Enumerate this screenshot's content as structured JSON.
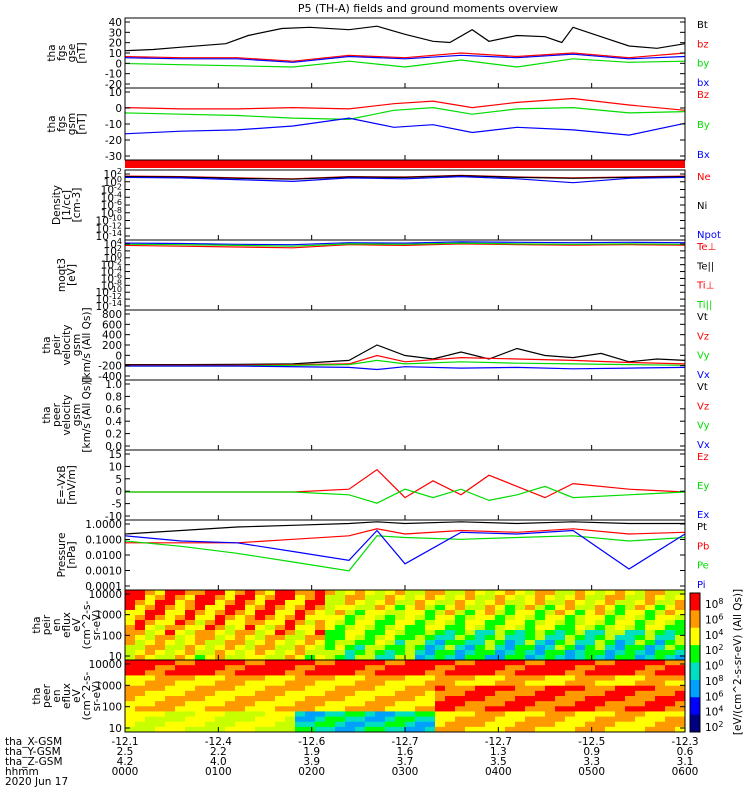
{
  "title": "P5 (TH-A) fields and ground moments overview",
  "colors": {
    "black": "#000000",
    "red": "#ff0000",
    "green": "#00dd00",
    "blue": "#0000ff"
  },
  "chart_data": [
    {
      "type": "line",
      "ylabel": [
        "tha",
        "fgs",
        "gse",
        "[nT]"
      ],
      "ylim": [
        -20,
        40
      ],
      "scale": "linear",
      "yticks": [
        "40",
        "30",
        "20",
        "10",
        "0",
        "-10",
        "-20"
      ],
      "legend": [
        {
          "label": "Bt",
          "color": "black"
        },
        {
          "label": "bz",
          "color": "red"
        },
        {
          "label": "by",
          "color": "green"
        },
        {
          "label": "bx",
          "color": "blue"
        }
      ],
      "series": [
        {
          "name": "Bt",
          "color": "black",
          "x": [
            0,
            5,
            10,
            18,
            22,
            28,
            33,
            40,
            45,
            50,
            55,
            58,
            62,
            65,
            70,
            75,
            78,
            80,
            85,
            90,
            95,
            100
          ],
          "y": [
            12,
            13,
            15,
            18,
            25,
            31,
            32,
            30,
            33,
            26,
            20,
            19,
            30,
            20,
            25,
            24,
            19,
            32,
            24,
            16,
            14,
            18
          ]
        },
        {
          "name": "bz",
          "color": "red",
          "x": [
            0,
            10,
            20,
            30,
            40,
            50,
            60,
            70,
            80,
            90,
            100
          ],
          "y": [
            7,
            6,
            6,
            3,
            8,
            6,
            10,
            7,
            10,
            6,
            10
          ]
        },
        {
          "name": "by",
          "color": "green",
          "x": [
            0,
            10,
            20,
            30,
            40,
            50,
            60,
            70,
            80,
            90,
            100
          ],
          "y": [
            1,
            0,
            -1,
            -2,
            3,
            -2,
            4,
            -2,
            5,
            2,
            3
          ]
        },
        {
          "name": "bx",
          "color": "blue",
          "x": [
            0,
            10,
            20,
            30,
            40,
            50,
            60,
            70,
            80,
            90,
            100
          ],
          "y": [
            6,
            5,
            5,
            2,
            7,
            5,
            8,
            6,
            9,
            5,
            7
          ]
        }
      ]
    },
    {
      "type": "line",
      "ylabel": [
        "tha",
        "fgs",
        "gsm",
        "[nT]"
      ],
      "ylim": [
        -35,
        20
      ],
      "scale": "linear",
      "yticks": [
        "10",
        "0",
        "-10",
        "-20",
        "-30"
      ],
      "legend": [
        {
          "label": "Bz",
          "color": "red"
        },
        {
          "label": "By",
          "color": "green"
        },
        {
          "label": "Bx",
          "color": "blue"
        }
      ],
      "series": [
        {
          "name": "Bz",
          "color": "red",
          "x": [
            0,
            10,
            20,
            30,
            40,
            48,
            55,
            62,
            70,
            80,
            90,
            100
          ],
          "y": [
            5,
            4,
            4,
            5,
            4,
            8,
            10,
            5,
            9,
            12,
            7,
            3
          ]
        },
        {
          "name": "By",
          "color": "green",
          "x": [
            0,
            10,
            20,
            30,
            40,
            48,
            55,
            62,
            70,
            80,
            90,
            100
          ],
          "y": [
            1,
            0,
            -1,
            -3,
            -4,
            3,
            5,
            0,
            4,
            5,
            1,
            2
          ]
        },
        {
          "name": "Bx",
          "color": "blue",
          "x": [
            0,
            10,
            20,
            30,
            40,
            48,
            55,
            62,
            70,
            80,
            90,
            100
          ],
          "y": [
            -15,
            -13,
            -12,
            -9,
            -3,
            -10,
            -8,
            -14,
            -10,
            -12,
            -16,
            -7
          ]
        }
      ]
    },
    {
      "type": "line",
      "ylabel": [
        "Density",
        "[1/cc]",
        "[cm-3]"
      ],
      "ylim": [
        -14,
        2
      ],
      "scale": "log",
      "yticks": [
        "10^2",
        "10^0",
        "10^-2",
        "10^-4",
        "10^-6",
        "10^-8",
        "10^-10",
        "10^-12",
        "10^-14"
      ],
      "legend": [
        {
          "label": "Ne",
          "color": "red"
        },
        {
          "label": "Ni",
          "color": "black"
        },
        {
          "label": "Npot",
          "color": "blue"
        }
      ],
      "series": [
        {
          "name": "Ne",
          "color": "red",
          "x": [
            0,
            10,
            20,
            30,
            40,
            50,
            60,
            70,
            80,
            90,
            100
          ],
          "y": [
            0.6,
            0.5,
            0.2,
            0,
            0.5,
            0.4,
            0.8,
            0.4,
            0.2,
            0.4,
            0.6
          ]
        },
        {
          "name": "Ni",
          "color": "black",
          "x": [
            0,
            10,
            20,
            30,
            40,
            50,
            60,
            70,
            80,
            90,
            100
          ],
          "y": [
            0.5,
            0.4,
            0.1,
            -0.1,
            0.4,
            0.3,
            0.7,
            0.3,
            0.1,
            0.3,
            0.5
          ]
        },
        {
          "name": "Npot",
          "color": "blue",
          "x": [
            0,
            10,
            20,
            30,
            40,
            50,
            60,
            70,
            80,
            90,
            100
          ],
          "y": [
            0.3,
            0.2,
            -0.2,
            -0.6,
            0.2,
            0,
            0.5,
            0,
            -0.9,
            0.1,
            0.3
          ]
        }
      ]
    },
    {
      "type": "line",
      "ylabel": [
        "moqt3",
        "[eV]"
      ],
      "ylim": [
        -14,
        4
      ],
      "scale": "log",
      "yticks": [
        "10^4",
        "10^2",
        "10^0",
        "10^-2",
        "10^-4",
        "10^-6",
        "10^-8",
        "10^-10",
        "10^-12",
        "10^-14"
      ],
      "legend": [
        {
          "label": "Te⊥",
          "color": "red"
        },
        {
          "label": "Te||",
          "color": "black"
        },
        {
          "label": "Ti⊥",
          "color": "red"
        },
        {
          "label": "Ti||",
          "color": "green"
        }
      ],
      "series": [
        {
          "name": "Ti",
          "color": "blue",
          "x": [
            0,
            10,
            20,
            30,
            40,
            50,
            60,
            70,
            80,
            90,
            100
          ],
          "y": [
            3.2,
            3.1,
            2.9,
            2.8,
            3.3,
            3.2,
            3.5,
            3.4,
            3.3,
            3.4,
            3.3
          ]
        },
        {
          "name": "Te",
          "color": "red",
          "x": [
            0,
            10,
            20,
            30,
            40,
            50,
            60,
            70,
            80,
            90,
            100
          ],
          "y": [
            2.6,
            2.4,
            2.2,
            2.0,
            2.8,
            2.6,
            3.0,
            2.8,
            2.7,
            2.8,
            2.7
          ]
        },
        {
          "name": "Ti||",
          "color": "green",
          "x": [
            0,
            10,
            20,
            30,
            40,
            50,
            60,
            70,
            80,
            90,
            100
          ],
          "y": [
            2.9,
            2.8,
            2.6,
            2.4,
            3.0,
            2.9,
            3.2,
            3.0,
            2.9,
            3.0,
            2.9
          ]
        }
      ]
    },
    {
      "type": "line",
      "ylabel": [
        "tha",
        "peir",
        "velocity",
        "gsm",
        "[km/s (All Qs)]"
      ],
      "ylim": [
        -200,
        800
      ],
      "scale": "linear",
      "yticks": [
        "800",
        "600",
        "400",
        "200",
        "0",
        "-200",
        "-400"
      ],
      "legend": [
        {
          "label": "Vt",
          "color": "black"
        },
        {
          "label": "Vz",
          "color": "red"
        },
        {
          "label": "Vy",
          "color": "green"
        },
        {
          "label": "Vx",
          "color": "blue"
        }
      ],
      "series": [
        {
          "name": "Vt",
          "color": "black",
          "x": [
            0,
            10,
            20,
            30,
            40,
            45,
            50,
            55,
            60,
            65,
            70,
            75,
            80,
            85,
            90,
            95,
            100
          ],
          "y": [
            20,
            20,
            25,
            30,
            80,
            300,
            150,
            100,
            200,
            100,
            250,
            150,
            120,
            180,
            60,
            100,
            80
          ]
        },
        {
          "name": "Vz",
          "color": "red",
          "x": [
            0,
            20,
            40,
            45,
            50,
            60,
            70,
            80,
            90,
            100
          ],
          "y": [
            10,
            10,
            30,
            150,
            60,
            120,
            100,
            80,
            50,
            30
          ]
        },
        {
          "name": "Vy",
          "color": "green",
          "x": [
            0,
            20,
            40,
            45,
            50,
            60,
            70,
            80,
            90,
            100
          ],
          "y": [
            0,
            0,
            20,
            80,
            30,
            60,
            40,
            30,
            20,
            10
          ]
        },
        {
          "name": "Vx",
          "color": "blue",
          "x": [
            0,
            20,
            40,
            45,
            50,
            60,
            70,
            80,
            90,
            100
          ],
          "y": [
            0,
            0,
            -20,
            -50,
            -10,
            -30,
            -20,
            -40,
            -30,
            -20
          ]
        }
      ]
    },
    {
      "type": "line",
      "ylabel": [
        "tha",
        "peer",
        "velocity",
        "gsm",
        "[km/s (All Qs)]"
      ],
      "ylim": [
        0,
        1
      ],
      "scale": "linear",
      "yticks": [
        "1.0",
        "0.8",
        "0.6",
        "0.4",
        "0.2",
        "0.0"
      ],
      "legend": [
        {
          "label": "Vt",
          "color": "black"
        },
        {
          "label": "Vz",
          "color": "red"
        },
        {
          "label": "Vy",
          "color": "green"
        },
        {
          "label": "Vx",
          "color": "blue"
        }
      ],
      "series": []
    },
    {
      "type": "line",
      "ylabel": [
        "E=-VxB",
        "[mV/m]"
      ],
      "ylim": [
        -10,
        15
      ],
      "scale": "linear",
      "yticks": [
        "15",
        "10",
        "5",
        "0",
        "-5",
        "-10"
      ],
      "legend": [
        {
          "label": "Ez",
          "color": "red"
        },
        {
          "label": "Ey",
          "color": "green"
        },
        {
          "label": "Ex",
          "color": "blue"
        }
      ],
      "series": [
        {
          "name": "Ez",
          "color": "red",
          "x": [
            0,
            10,
            20,
            30,
            40,
            45,
            50,
            55,
            60,
            65,
            70,
            75,
            80,
            90,
            100
          ],
          "y": [
            0,
            0,
            0,
            0,
            1,
            8,
            -2,
            4,
            -1,
            6,
            2,
            -2,
            3,
            1,
            0
          ]
        },
        {
          "name": "Ey",
          "color": "green",
          "x": [
            0,
            10,
            20,
            30,
            40,
            45,
            50,
            55,
            60,
            65,
            70,
            75,
            80,
            90,
            100
          ],
          "y": [
            0,
            0,
            0,
            0,
            -1,
            -4,
            1,
            -2,
            1,
            -3,
            -1,
            2,
            -2,
            -1,
            0
          ]
        }
      ]
    },
    {
      "type": "line",
      "ylabel": [
        "Pressure",
        "[nPa]"
      ],
      "ylim": [
        -4,
        0
      ],
      "scale": "log",
      "yticks": [
        "1.0000",
        "0.1000",
        "0.0100",
        "0.0010",
        "0.0001"
      ],
      "legend": [
        {
          "label": "Pt",
          "color": "black"
        },
        {
          "label": "Pb",
          "color": "red"
        },
        {
          "label": "Pe",
          "color": "green"
        },
        {
          "label": "Pi",
          "color": "blue"
        }
      ],
      "series": [
        {
          "name": "Pt",
          "color": "black",
          "x": [
            0,
            10,
            20,
            30,
            40,
            45,
            50,
            60,
            70,
            80,
            90,
            100
          ],
          "y": [
            -0.8,
            -0.6,
            -0.4,
            -0.3,
            -0.2,
            -0.1,
            -0.2,
            -0.1,
            -0.2,
            -0.1,
            -0.2,
            -0.2
          ]
        },
        {
          "name": "Pb",
          "color": "red",
          "x": [
            0,
            10,
            20,
            30,
            40,
            45,
            50,
            60,
            70,
            80,
            90,
            100
          ],
          "y": [
            -1.3,
            -1.3,
            -1.3,
            -1.1,
            -0.9,
            -0.5,
            -0.8,
            -0.6,
            -0.7,
            -0.5,
            -0.8,
            -0.7
          ]
        },
        {
          "name": "Pe",
          "color": "green",
          "x": [
            0,
            10,
            20,
            30,
            40,
            45,
            50,
            60,
            70,
            80,
            90,
            100
          ],
          "y": [
            -1.2,
            -1.5,
            -1.9,
            -2.4,
            -2.9,
            -0.9,
            -1.0,
            -1.1,
            -1.0,
            -0.9,
            -1.2,
            -1.0
          ]
        },
        {
          "name": "Pi",
          "color": "blue",
          "x": [
            0,
            10,
            20,
            30,
            40,
            45,
            50,
            60,
            70,
            80,
            90,
            100
          ],
          "y": [
            -0.9,
            -1.2,
            -1.3,
            -1.8,
            -2.3,
            -0.6,
            -2.5,
            -0.7,
            -0.8,
            -0.6,
            -2.8,
            -0.8
          ]
        }
      ]
    },
    {
      "type": "heatmap",
      "ylabel": [
        "tha",
        "peir",
        "en",
        "eflux",
        "eV",
        "(cm^2-s-",
        "sr-eV)"
      ],
      "ylim": [
        5,
        20000
      ],
      "scale": "log",
      "yticks": [
        "10000",
        "1000",
        "100",
        "10"
      ]
    },
    {
      "type": "heatmap",
      "ylabel": [
        "tha",
        "peer",
        "en",
        "eflux",
        "eV",
        "(cm^2-s-",
        "sr-eV)"
      ],
      "ylim": [
        5,
        20000
      ],
      "scale": "log",
      "yticks": [
        "10000",
        "1000",
        "100",
        "10"
      ]
    }
  ],
  "colorbar": {
    "ticks": [
      "10^8",
      "10^6",
      "10^4",
      "10^2",
      "10^0",
      "10^8",
      "10^6",
      "10^4",
      "10^2"
    ],
    "label": "[eV/(cm^2-s-sr-eV) (All Qs)]"
  },
  "axis_table": {
    "rows": [
      {
        "name": "tha_X-GSM",
        "values": [
          "-12.1",
          "-12.4",
          "-12.6",
          "-12.7",
          "-12.7",
          "-12.5",
          "-12.3"
        ]
      },
      {
        "name": "tha_Y-GSM",
        "values": [
          "2.5",
          "2.2",
          "1.9",
          "1.6",
          "1.3",
          "0.9",
          "0.6"
        ]
      },
      {
        "name": "tha_Z-GSM",
        "values": [
          "4.2",
          "4.0",
          "3.9",
          "3.7",
          "3.5",
          "3.3",
          "3.1"
        ]
      },
      {
        "name": "hhmm",
        "values": [
          "0000",
          "0100",
          "0200",
          "0300",
          "0400",
          "0500",
          "0600"
        ]
      }
    ],
    "date": "2020 Jun 17"
  }
}
